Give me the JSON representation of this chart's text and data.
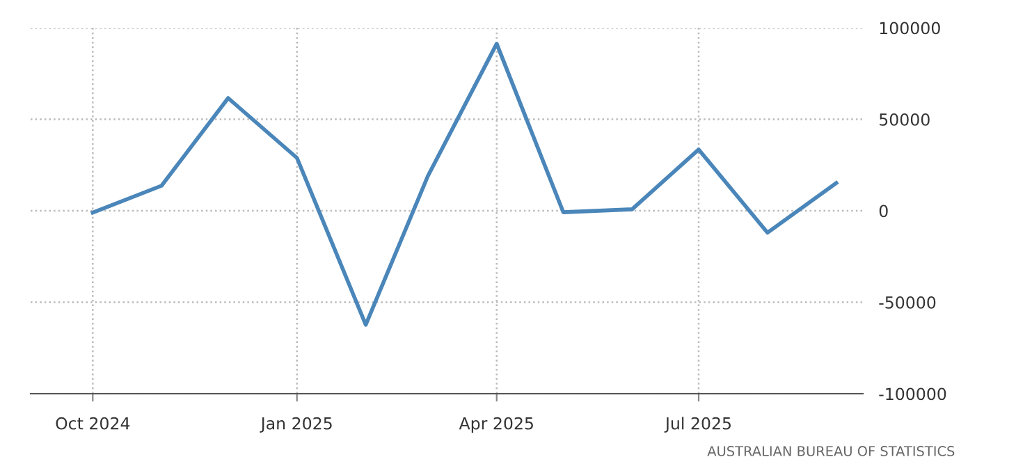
{
  "chart_data": {
    "type": "line",
    "x": [
      "2024-10",
      "2024-11",
      "2024-12",
      "2025-01",
      "2025-02",
      "2025-03",
      "2025-04",
      "2025-05",
      "2025-06",
      "2025-07",
      "2025-08",
      "2025-09"
    ],
    "series": [
      {
        "color": "#4a86b9",
        "values": [
          -1000,
          13700,
          61600,
          28900,
          -62300,
          19000,
          91300,
          -800,
          800,
          33500,
          -12000,
          15200
        ]
      }
    ],
    "xlim": [
      "2024-09-03",
      "2025-09-13"
    ],
    "xticks": [
      {
        "value": "2024-10",
        "label": "Oct 2024"
      },
      {
        "value": "2025-01",
        "label": "Jan 2025"
      },
      {
        "value": "2025-04",
        "label": "Apr 2025"
      },
      {
        "value": "2025-07",
        "label": "Jul 2025"
      }
    ],
    "ylim": [
      -100000,
      100000
    ],
    "yticks": [
      -100000,
      -50000,
      0,
      50000,
      100000
    ],
    "grid": true,
    "annotations": [
      "AUSTRALIAN BUREAU OF STATISTICS"
    ]
  }
}
